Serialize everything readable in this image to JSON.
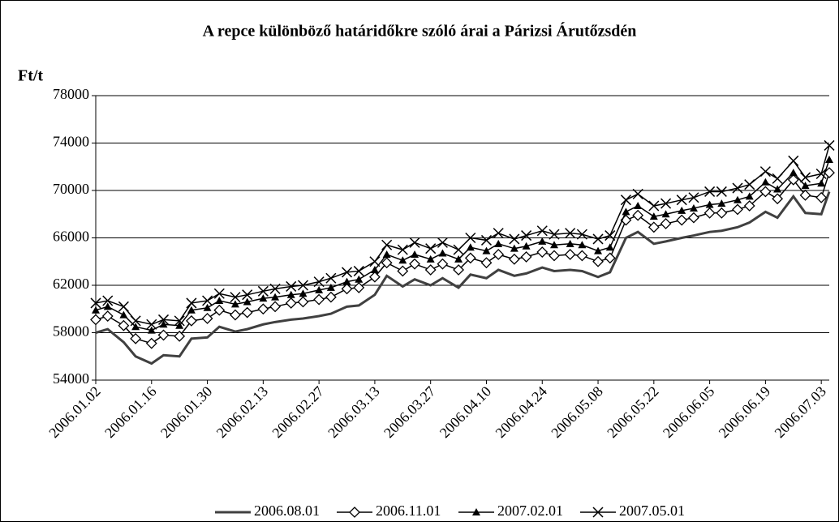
{
  "chart_data": {
    "type": "line",
    "title": "A repce különböző határidőkre szóló árai a Párizsi Árutőzsdén",
    "y_label": "Ft/t",
    "x": [
      "2006.01.02",
      "2006.01.05",
      "2006.01.09",
      "2006.01.12",
      "2006.01.16",
      "2006.01.19",
      "2006.01.23",
      "2006.01.26",
      "2006.01.30",
      "2006.02.02",
      "2006.02.06",
      "2006.02.09",
      "2006.02.13",
      "2006.02.16",
      "2006.02.20",
      "2006.02.23",
      "2006.02.27",
      "2006.03.02",
      "2006.03.06",
      "2006.03.09",
      "2006.03.13",
      "2006.03.16",
      "2006.03.20",
      "2006.03.23",
      "2006.03.27",
      "2006.03.30",
      "2006.04.03",
      "2006.04.06",
      "2006.04.10",
      "2006.04.13",
      "2006.04.17",
      "2006.04.20",
      "2006.04.24",
      "2006.04.27",
      "2006.05.01",
      "2006.05.04",
      "2006.05.08",
      "2006.05.11",
      "2006.05.15",
      "2006.05.18",
      "2006.05.22",
      "2006.05.25",
      "2006.05.29",
      "2006.06.01",
      "2006.06.05",
      "2006.06.08",
      "2006.06.12",
      "2006.06.15",
      "2006.06.19",
      "2006.06.22",
      "2006.06.26",
      "2006.06.29",
      "2006.07.03",
      "2006.07.05"
    ],
    "series": [
      {
        "name": "2006.08.01",
        "color": "#404040",
        "marker": "none",
        "values": [
          58000,
          58300,
          57200,
          56000,
          55400,
          56100,
          56000,
          57500,
          57600,
          58500,
          58100,
          58300,
          58700,
          58900,
          59100,
          59200,
          59400,
          59600,
          60200,
          60300,
          61200,
          62800,
          61900,
          62500,
          62000,
          62600,
          61800,
          62900,
          62600,
          63300,
          62800,
          63000,
          63500,
          63200,
          63300,
          63200,
          62700,
          63100,
          66000,
          66500,
          65500,
          65700,
          66000,
          66200,
          66500,
          66600,
          66900,
          67300,
          68200,
          67700,
          69500,
          68100,
          68000,
          69900
        ]
      },
      {
        "name": "2006.11.01",
        "color": "#000000",
        "marker": "diamond",
        "values": [
          59100,
          59400,
          58600,
          57500,
          57100,
          57800,
          57700,
          59000,
          59200,
          59900,
          59500,
          59700,
          60000,
          60200,
          60500,
          60600,
          60800,
          61000,
          61700,
          61800,
          62700,
          63900,
          63200,
          63800,
          63300,
          63800,
          63300,
          64300,
          63900,
          64600,
          64200,
          64400,
          64800,
          64500,
          64600,
          64500,
          64000,
          64300,
          67500,
          67900,
          66900,
          67200,
          67500,
          67700,
          68100,
          68100,
          68400,
          68700,
          69900,
          69300,
          70900,
          69600,
          69400,
          71500
        ]
      },
      {
        "name": "2007.02.01",
        "color": "#000000",
        "marker": "triangle",
        "values": [
          59900,
          60200,
          59500,
          58500,
          58200,
          58700,
          58600,
          59900,
          60100,
          60700,
          60400,
          60600,
          60900,
          61000,
          61200,
          61300,
          61600,
          61800,
          62300,
          62500,
          63300,
          64600,
          64100,
          64600,
          64200,
          64700,
          64200,
          65200,
          64900,
          65500,
          65100,
          65300,
          65700,
          65400,
          65500,
          65400,
          64900,
          65200,
          68200,
          68700,
          67800,
          68000,
          68300,
          68500,
          68800,
          68900,
          69200,
          69500,
          70700,
          70100,
          71500,
          70400,
          70600,
          72600
        ]
      },
      {
        "name": "2007.05.01",
        "color": "#000000",
        "marker": "x",
        "values": [
          60500,
          60700,
          60200,
          59000,
          58700,
          59100,
          59000,
          60500,
          60700,
          61300,
          61000,
          61200,
          61500,
          61700,
          61900,
          62000,
          62300,
          62600,
          63100,
          63200,
          64000,
          65400,
          65000,
          65600,
          65100,
          65600,
          65000,
          66000,
          65800,
          66400,
          65900,
          66200,
          66600,
          66300,
          66400,
          66300,
          65900,
          66200,
          69200,
          69700,
          68700,
          68900,
          69200,
          69400,
          69900,
          69900,
          70200,
          70500,
          71600,
          71000,
          72500,
          71100,
          71400,
          73800
        ]
      }
    ],
    "xlim": [
      "2006.01.02",
      "2006.07.05"
    ],
    "xticks": [
      "2006.01.02",
      "2006.01.16",
      "2006.01.30",
      "2006.02.13",
      "2006.02.27",
      "2006.03.13",
      "2006.03.27",
      "2006.04.10",
      "2006.04.24",
      "2006.05.08",
      "2006.05.22",
      "2006.06.05",
      "2006.06.19",
      "2006.07.03"
    ],
    "ylim": [
      54000,
      78000
    ],
    "yticks": [
      54000,
      58000,
      62000,
      66000,
      70000,
      74000,
      78000
    ],
    "grid": true,
    "legend": "bottom"
  }
}
